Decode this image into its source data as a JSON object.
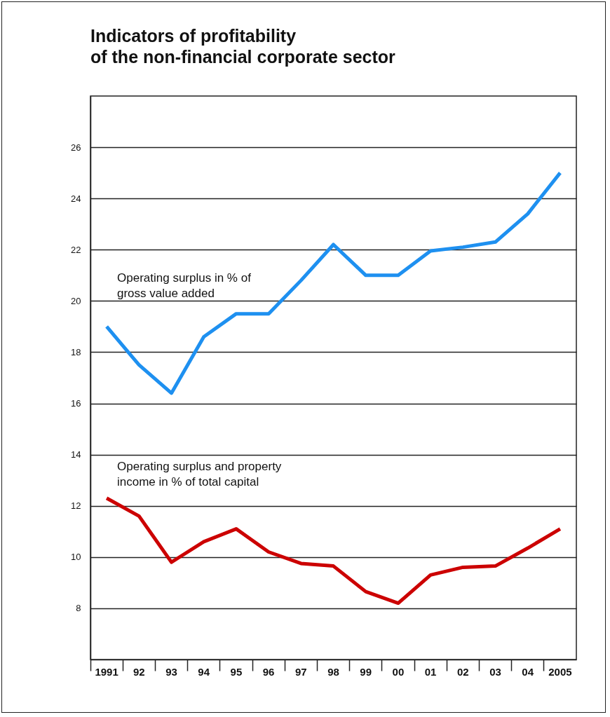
{
  "chart_data": {
    "type": "line",
    "title": "Indicators of profitability\nof the non-financial corporate sector",
    "categories": [
      "1991",
      "92",
      "93",
      "94",
      "95",
      "96",
      "97",
      "98",
      "99",
      "00",
      "01",
      "02",
      "03",
      "04",
      "2005"
    ],
    "series": [
      {
        "name": "Operating surplus in % of\ngross value added",
        "color": "#1e90f0",
        "values": [
          19.0,
          17.5,
          16.4,
          18.6,
          19.5,
          19.5,
          20.8,
          22.2,
          21.0,
          21.0,
          21.95,
          22.1,
          22.3,
          23.4,
          25.0
        ]
      },
      {
        "name": "Operating surplus and property\nincome in % of total capital",
        "color": "#cc0000",
        "values": [
          12.3,
          11.6,
          9.8,
          10.6,
          11.1,
          10.2,
          9.75,
          9.65,
          8.65,
          8.2,
          9.3,
          9.6,
          9.65,
          10.35,
          11.1
        ]
      }
    ],
    "ylim": [
      6,
      28
    ],
    "yticks": [
      8,
      10,
      12,
      14,
      16,
      18,
      20,
      22,
      24,
      26
    ],
    "grid": "y",
    "legend": false,
    "marker": "none",
    "line_style": "solid"
  }
}
